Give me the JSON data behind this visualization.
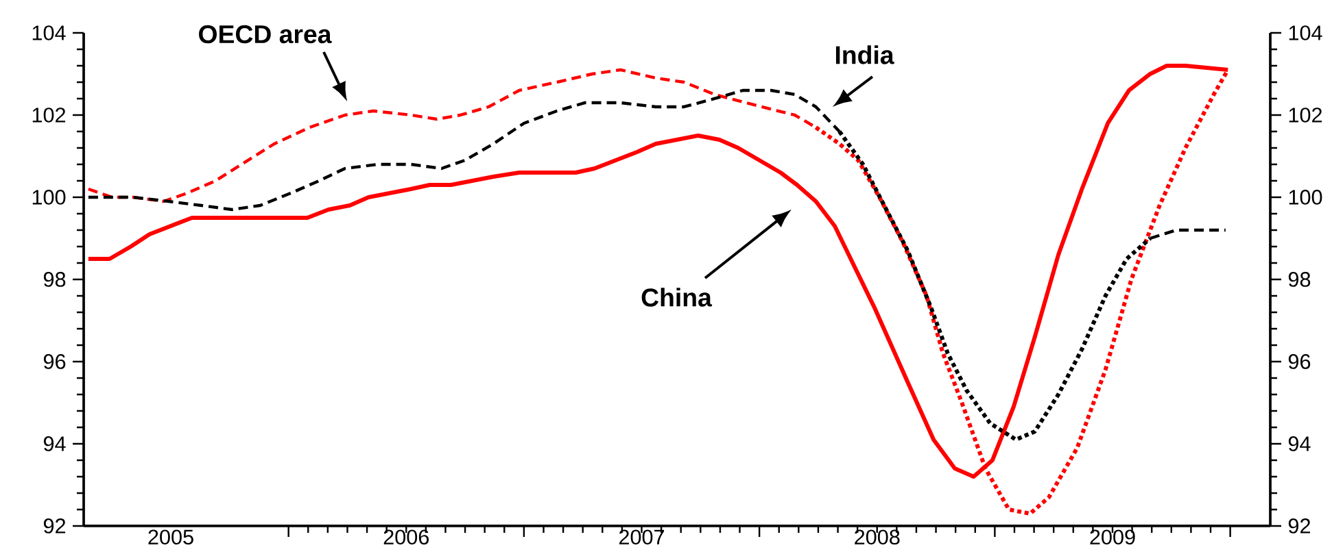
{
  "chart_data": {
    "type": "line",
    "xlim": [
      2005.13,
      2010.17
    ],
    "ylim": [
      92,
      104
    ],
    "y2lim": [
      92,
      104
    ],
    "yticks": [
      92,
      94,
      96,
      98,
      100,
      102,
      104
    ],
    "y2ticks": [
      92,
      94,
      96,
      98,
      100,
      102,
      104
    ],
    "xticks": [
      {
        "value": 2006,
        "label": null
      },
      {
        "value": 2007,
        "label": null
      },
      {
        "value": 2008,
        "label": null
      },
      {
        "value": 2009,
        "label": null
      },
      {
        "value": 2010,
        "label": null
      },
      {
        "value": 2005.5,
        "label": "2005"
      },
      {
        "value": 2006.5,
        "label": "2006"
      },
      {
        "value": 2007.5,
        "label": "2007"
      },
      {
        "value": 2008.5,
        "label": "2008"
      },
      {
        "value": 2009.5,
        "label": "2009"
      }
    ],
    "marker": "none",
    "series": [
      {
        "color": "#ff0000",
        "line_style": "solid",
        "x": [
          2005.15,
          2005.24,
          2005.33,
          2005.41,
          2005.5,
          2005.59,
          2005.67,
          2005.85,
          2006.08,
          2006.17,
          2006.26,
          2006.34,
          2006.43,
          2006.52,
          2006.6,
          2006.69,
          2006.78,
          2006.87,
          2006.98,
          2007.22,
          2007.3,
          2007.39,
          2007.48,
          2007.56,
          2007.65,
          2007.74,
          2007.83,
          2007.91,
          2008.0,
          2008.09,
          2008.16,
          2008.24,
          2008.32,
          2008.49,
          2008.63,
          2008.74,
          2008.83,
          2008.91,
          2008.99,
          2009.08,
          2009.17,
          2009.27,
          2009.37,
          2009.48,
          2009.57,
          2009.66,
          2009.73,
          2009.81,
          2009.99
        ],
        "values": [
          98.5,
          98.5,
          98.8,
          99.1,
          99.3,
          99.5,
          99.5,
          99.5,
          99.5,
          99.7,
          99.8,
          100.0,
          100.1,
          100.2,
          100.3,
          100.3,
          100.4,
          100.5,
          100.6,
          100.6,
          100.7,
          100.9,
          101.1,
          101.3,
          101.4,
          101.5,
          101.4,
          101.2,
          100.9,
          100.6,
          100.3,
          99.9,
          99.3,
          97.3,
          95.5,
          94.1,
          93.4,
          93.2,
          93.6,
          94.9,
          96.6,
          98.6,
          100.2,
          101.8,
          102.6,
          103.0,
          103.2,
          103.2,
          103.1
        ]
      },
      {
        "color": "#ff0000",
        "line_style": "dashed",
        "x": [
          2005.15,
          2005.25,
          2005.34,
          2005.47,
          2005.57,
          2005.69,
          2005.8,
          2005.94,
          2006.09,
          2006.24,
          2006.36,
          2006.52,
          2006.63,
          2006.73,
          2006.85,
          2006.98,
          2007.14,
          2007.29,
          2007.41,
          2007.56,
          2007.68,
          2007.81,
          2008.01,
          2008.15,
          2008.24
        ],
        "values": [
          100.2,
          100.0,
          100.0,
          99.9,
          100.1,
          100.4,
          100.8,
          101.3,
          101.7,
          102.0,
          102.1,
          102.0,
          101.9,
          102.0,
          102.2,
          102.6,
          102.8,
          103.0,
          103.1,
          102.9,
          102.8,
          102.5,
          102.2,
          102.0,
          101.7
        ]
      },
      {
        "color": "#ff0000",
        "line_style": "dotted",
        "x": [
          2008.24,
          2008.34,
          2008.42,
          2008.51,
          2008.61,
          2008.71,
          2008.78,
          2008.86,
          2008.96,
          2009.06,
          2009.15,
          2009.23,
          2009.35,
          2009.47,
          2009.58,
          2009.7,
          2009.81,
          2009.93,
          2009.99
        ],
        "values": [
          101.7,
          101.3,
          100.9,
          100.0,
          98.9,
          97.6,
          96.2,
          95.0,
          93.4,
          92.4,
          92.3,
          92.7,
          93.9,
          95.8,
          98.0,
          99.8,
          101.2,
          102.5,
          103.1
        ]
      },
      {
        "color": "#000000",
        "line_style": "dashed",
        "x": [
          2005.15,
          2005.34,
          2005.49,
          2005.63,
          2005.76,
          2005.88,
          2006.01,
          2006.13,
          2006.24,
          2006.38,
          2006.52,
          2006.65,
          2006.75,
          2006.87,
          2007.0,
          2007.14,
          2007.26,
          2007.41,
          2007.56,
          2007.68,
          2007.81,
          2007.93,
          2008.05,
          2008.15,
          2008.24,
          2008.34
        ],
        "values": [
          100.0,
          100.0,
          99.9,
          99.8,
          99.7,
          99.8,
          100.1,
          100.4,
          100.7,
          100.8,
          100.8,
          100.7,
          100.9,
          101.3,
          101.8,
          102.1,
          102.3,
          102.3,
          102.2,
          102.2,
          102.4,
          102.6,
          102.6,
          102.5,
          102.2,
          101.6
        ]
      },
      {
        "color": "#000000",
        "line_style": "dotted",
        "x": [
          2008.34,
          2008.44,
          2008.53,
          2008.63,
          2008.73,
          2008.8,
          2008.88,
          2008.98,
          2009.09,
          2009.17,
          2009.27,
          2009.37,
          2009.47,
          2009.56,
          2009.66
        ],
        "values": [
          101.6,
          100.8,
          99.8,
          98.7,
          97.3,
          96.2,
          95.3,
          94.5,
          94.1,
          94.3,
          95.2,
          96.3,
          97.6,
          98.5,
          99.0
        ]
      },
      {
        "color": "#000000",
        "line_style": "dashed",
        "x": [
          2009.66,
          2009.77,
          2009.89,
          2009.98
        ],
        "values": [
          99.0,
          99.2,
          99.2,
          99.2
        ]
      }
    ],
    "annotations": [
      "OECD area",
      "India",
      "China"
    ]
  }
}
